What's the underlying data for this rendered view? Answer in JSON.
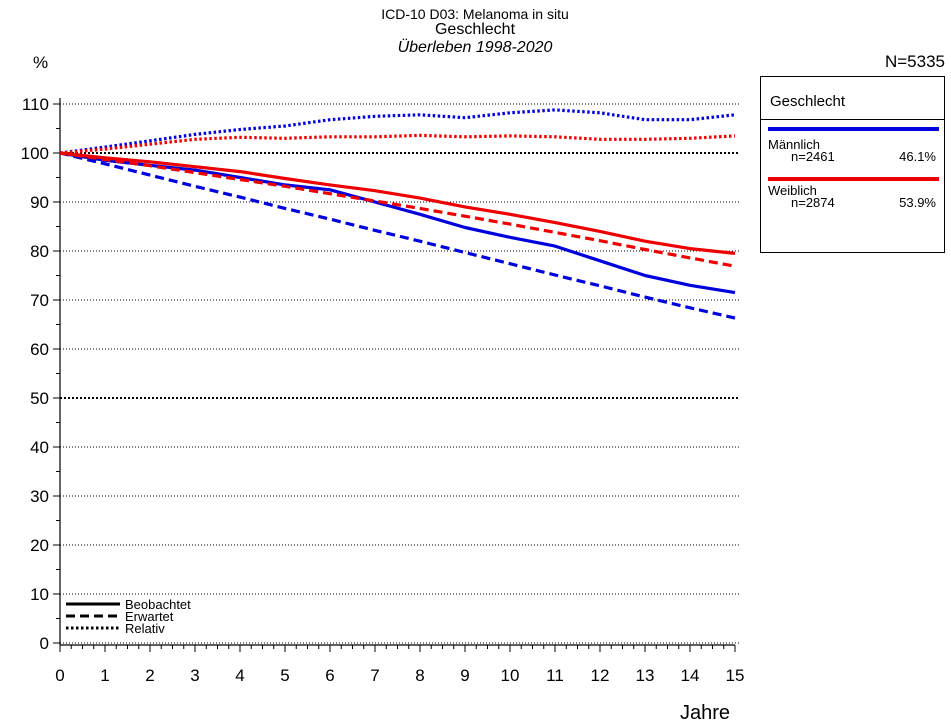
{
  "header": {
    "line1": "ICD-10 D03: Melanoma in situ",
    "line2": "Geschlecht",
    "line3": "Überleben 1998-2020"
  },
  "y_unit": "%",
  "n_total": "N=5335",
  "x_title": "Jahre",
  "legend": {
    "title": "Geschlecht",
    "items": [
      {
        "label": "Männlich",
        "n": "n=2461",
        "pct": "46.1%",
        "color": "#0000dd"
      },
      {
        "label": "Weiblich",
        "n": "n=2874",
        "pct": "53.9%",
        "color": "#ee0000"
      }
    ]
  },
  "line_key": [
    {
      "label": "Beobachtet",
      "style": "solid"
    },
    {
      "label": "Erwartet",
      "style": "dashed"
    },
    {
      "label": "Relativ",
      "style": "dotted"
    }
  ],
  "chart_data": {
    "type": "line",
    "title": "ICD-10 D03: Melanoma in situ",
    "xlabel": "Jahre",
    "ylabel": "%",
    "xlim": [
      0,
      15
    ],
    "ylim": [
      0,
      110
    ],
    "xticks": [
      0,
      1,
      2,
      3,
      4,
      5,
      6,
      7,
      8,
      9,
      10,
      11,
      12,
      13,
      14,
      15
    ],
    "yticks": [
      0,
      10,
      20,
      30,
      40,
      50,
      60,
      70,
      80,
      90,
      100,
      110
    ],
    "grid": "horizontal dotted",
    "x": [
      0,
      1,
      2,
      3,
      4,
      5,
      6,
      7,
      8,
      9,
      10,
      11,
      12,
      13,
      14,
      15
    ],
    "series": [
      {
        "name": "Männlich",
        "kind": "Beobachtet",
        "color": "#0000dd",
        "style": "solid",
        "values": [
          100,
          98.5,
          97.5,
          96.5,
          95.0,
          93.5,
          92.5,
          90.0,
          87.5,
          84.8,
          82.8,
          81.0,
          78.0,
          75.0,
          73.0,
          71.5
        ]
      },
      {
        "name": "Männlich",
        "kind": "Erwartet",
        "color": "#0000dd",
        "style": "dashed",
        "values": [
          100,
          97.8,
          95.5,
          93.2,
          91.0,
          88.7,
          86.5,
          84.2,
          82.0,
          79.7,
          77.4,
          75.1,
          72.9,
          70.6,
          68.4,
          66.3
        ]
      },
      {
        "name": "Männlich",
        "kind": "Relativ",
        "color": "#0000dd",
        "style": "dotted",
        "values": [
          100,
          101.2,
          102.5,
          103.8,
          104.8,
          105.5,
          106.8,
          107.5,
          107.8,
          107.2,
          108.2,
          108.8,
          108.2,
          106.8,
          106.8,
          107.8
        ]
      },
      {
        "name": "Weiblich",
        "kind": "Beobachtet",
        "color": "#ee0000",
        "style": "solid",
        "values": [
          100,
          99.0,
          98.2,
          97.2,
          96.2,
          94.8,
          93.5,
          92.3,
          90.8,
          89.0,
          87.5,
          85.8,
          84.0,
          82.0,
          80.5,
          79.5
        ]
      },
      {
        "name": "Weiblich",
        "kind": "Erwartet",
        "color": "#ee0000",
        "style": "dashed",
        "values": [
          100,
          98.7,
          97.4,
          96.0,
          94.6,
          93.2,
          91.7,
          90.2,
          88.7,
          87.1,
          85.5,
          83.8,
          82.1,
          80.3,
          78.6,
          76.9
        ]
      },
      {
        "name": "Weiblich",
        "kind": "Relativ",
        "color": "#ee0000",
        "style": "dotted",
        "values": [
          100,
          100.8,
          101.8,
          102.8,
          103.2,
          103.0,
          103.3,
          103.3,
          103.6,
          103.3,
          103.5,
          103.3,
          102.8,
          102.8,
          103.0,
          103.5
        ]
      }
    ]
  }
}
